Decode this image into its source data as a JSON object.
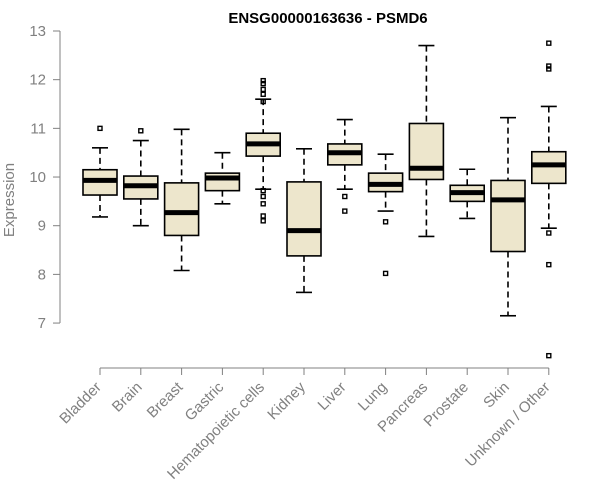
{
  "chart_data": {
    "type": "boxplot",
    "title": "ENSG00000163636 - PSMD6",
    "ylabel": "Expression",
    "xlabel": "",
    "ylim": [
      6.2,
      13.0
    ],
    "yticks": [
      7,
      8,
      9,
      10,
      11,
      12,
      13
    ],
    "categories": [
      "Bladder",
      "Brain",
      "Breast",
      "Gastric",
      "Hematopoietic cells",
      "Kidney",
      "Liver",
      "Lung",
      "Pancreas",
      "Prostate",
      "Skin",
      "Unknown / Other"
    ],
    "boxes": [
      {
        "category": "Bladder",
        "min": 9.18,
        "q1": 9.63,
        "median": 9.93,
        "q3": 10.15,
        "max": 10.6,
        "outliers": [
          11.0
        ]
      },
      {
        "category": "Brain",
        "min": 9.0,
        "q1": 9.55,
        "median": 9.82,
        "q3": 10.02,
        "max": 10.75,
        "outliers": [
          10.95
        ]
      },
      {
        "category": "Breast",
        "min": 8.08,
        "q1": 8.8,
        "median": 9.27,
        "q3": 9.88,
        "max": 10.98,
        "outliers": []
      },
      {
        "category": "Gastric",
        "min": 9.45,
        "q1": 9.72,
        "median": 9.98,
        "q3": 10.08,
        "max": 10.5,
        "outliers": []
      },
      {
        "category": "Hematopoietic cells",
        "min": 9.75,
        "q1": 10.43,
        "median": 10.68,
        "q3": 10.9,
        "max": 11.6,
        "outliers": [
          11.98,
          11.92,
          11.8,
          11.7,
          11.55,
          9.72,
          9.6,
          9.45,
          9.2,
          9.1
        ]
      },
      {
        "category": "Kidney",
        "min": 7.63,
        "q1": 8.38,
        "median": 8.9,
        "q3": 9.9,
        "max": 10.58,
        "outliers": []
      },
      {
        "category": "Liver",
        "min": 9.75,
        "q1": 10.25,
        "median": 10.5,
        "q3": 10.68,
        "max": 11.18,
        "outliers": [
          9.6,
          9.3
        ]
      },
      {
        "category": "Lung",
        "min": 9.3,
        "q1": 9.7,
        "median": 9.85,
        "q3": 10.08,
        "max": 10.47,
        "outliers": [
          9.08,
          8.02
        ]
      },
      {
        "category": "Pancreas",
        "min": 8.78,
        "q1": 9.95,
        "median": 10.18,
        "q3": 11.1,
        "max": 12.7,
        "outliers": []
      },
      {
        "category": "Prostate",
        "min": 9.15,
        "q1": 9.5,
        "median": 9.68,
        "q3": 9.83,
        "max": 10.16,
        "outliers": []
      },
      {
        "category": "Skin",
        "min": 7.15,
        "q1": 8.47,
        "median": 9.53,
        "q3": 9.93,
        "max": 11.22,
        "outliers": []
      },
      {
        "category": "Unknown / Other",
        "min": 8.95,
        "q1": 9.87,
        "median": 10.25,
        "q3": 10.52,
        "max": 11.45,
        "outliers": [
          12.75,
          12.28,
          12.22,
          8.85,
          8.2,
          6.33
        ]
      }
    ]
  }
}
